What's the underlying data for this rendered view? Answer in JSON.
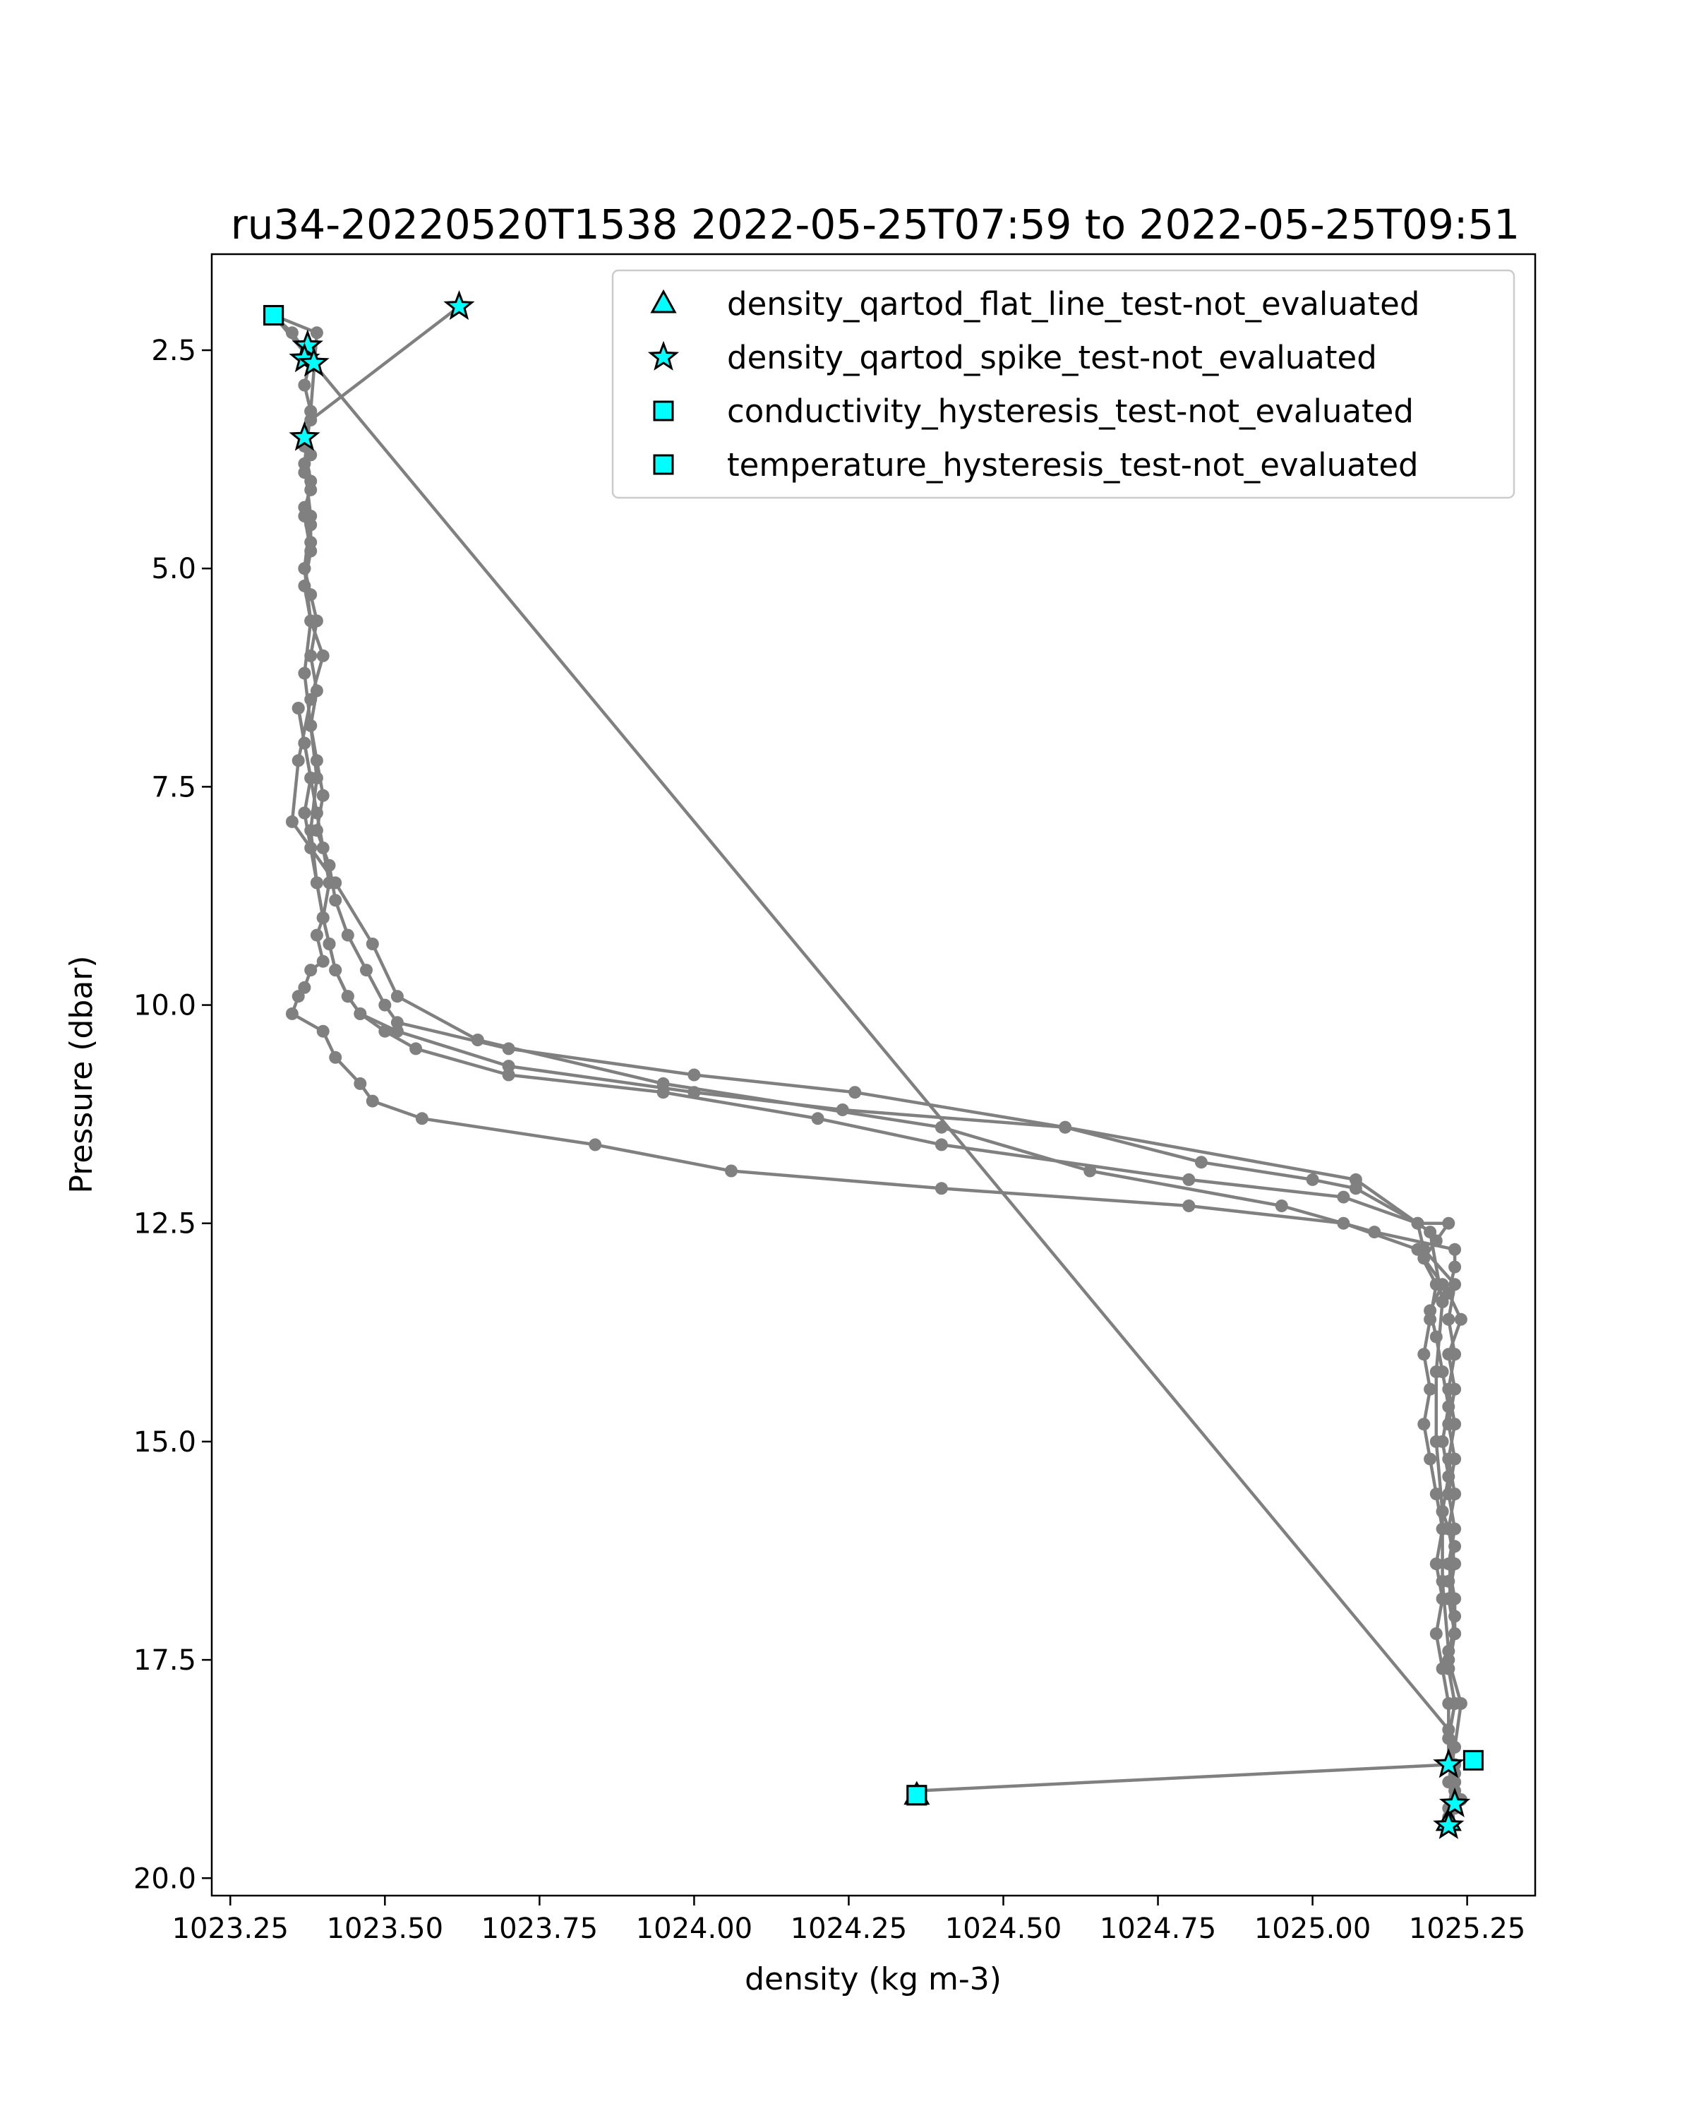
{
  "chart_data": {
    "type": "line",
    "title": "ru34-20220520T1538 2022-05-25T07:59 to 2022-05-25T09:51",
    "xlabel": "density (kg m-3)",
    "ylabel": "Pressure (dbar)",
    "xlim": [
      1023.22,
      1025.36
    ],
    "ylim": [
      20.2,
      1.4
    ],
    "y_inverted": true,
    "xticks": [
      1023.25,
      1023.5,
      1023.75,
      1024.0,
      1024.25,
      1024.5,
      1024.75,
      1025.0,
      1025.25
    ],
    "xtick_labels": [
      "1023.25",
      "1023.50",
      "1023.75",
      "1024.00",
      "1024.25",
      "1024.50",
      "1024.75",
      "1025.00",
      "1025.25"
    ],
    "yticks": [
      2.5,
      5.0,
      7.5,
      10.0,
      12.5,
      15.0,
      17.5,
      20.0
    ],
    "ytick_labels": [
      "2.5",
      "5.0",
      "7.5",
      "10.0",
      "12.5",
      "15.0",
      "17.5",
      "20.0"
    ],
    "grid": false,
    "legend_placement": "top-right",
    "line_color": "#808080",
    "marker_color": "#00ffff",
    "series": [
      {
        "x": [
          1023.62,
          1023.38,
          1023.37,
          1023.38,
          1023.37,
          1023.38,
          1023.37,
          1023.38,
          1023.38,
          1023.37,
          1023.38,
          1023.39,
          1023.38,
          1023.39,
          1023.38,
          1023.39,
          1023.4,
          1023.39,
          1023.41,
          1023.42,
          1023.44,
          1023.47,
          1023.5,
          1023.52,
          1023.7,
          1024.0,
          1024.26,
          1024.6,
          1024.82,
          1025.0,
          1025.07,
          1025.17,
          1025.18,
          1025.23,
          1025.22,
          1025.23,
          1025.22,
          1025.23,
          1025.22,
          1025.23,
          1025.22,
          1025.23,
          1025.22,
          1025.23,
          1025.22,
          1025.23,
          1025.22,
          1025.23,
          1025.23
        ],
        "y": [
          2.0,
          3.3,
          3.5,
          3.7,
          3.9,
          4.1,
          4.3,
          4.5,
          4.7,
          5.0,
          5.3,
          5.6,
          6.0,
          6.4,
          6.8,
          7.2,
          7.6,
          8.0,
          8.4,
          8.8,
          9.2,
          9.6,
          10.0,
          10.2,
          10.5,
          10.8,
          11.0,
          11.4,
          11.8,
          12.0,
          12.1,
          12.5,
          12.8,
          13.2,
          13.6,
          14.0,
          14.4,
          14.8,
          15.2,
          15.6,
          16.0,
          16.4,
          16.8,
          17.2,
          17.6,
          18.0,
          18.4,
          18.7,
          18.9
        ]
      },
      {
        "x": [
          1025.22,
          1025.23,
          1025.24,
          1025.22,
          1025.23,
          1025.22,
          1025.23,
          1025.21,
          1025.22,
          1025.21,
          1025.22,
          1025.21,
          1025.2,
          1025.19,
          1025.21,
          1025.18,
          1025.2,
          1025.22,
          1025.17,
          1025.05,
          1024.8,
          1024.4,
          1024.2,
          1023.95,
          1023.7,
          1023.55,
          1023.5,
          1023.46,
          1023.44,
          1023.42,
          1023.41,
          1023.4,
          1023.39,
          1023.38,
          1023.37,
          1023.38,
          1023.37,
          1023.36
        ],
        "y": [
          18.9,
          18.5,
          18.0,
          17.5,
          17.0,
          16.6,
          16.2,
          15.8,
          15.4,
          15.0,
          14.6,
          14.2,
          13.8,
          13.5,
          13.2,
          12.9,
          12.7,
          12.5,
          12.5,
          12.2,
          12.0,
          11.6,
          11.3,
          11.0,
          10.8,
          10.5,
          10.3,
          10.1,
          9.9,
          9.6,
          9.3,
          9.0,
          8.6,
          8.2,
          7.8,
          7.4,
          7.0,
          6.6
        ]
      },
      {
        "x": [
          1023.36,
          1023.37,
          1023.38,
          1023.39,
          1023.4,
          1023.41,
          1023.4,
          1023.39,
          1023.4,
          1023.38,
          1023.37,
          1023.36,
          1023.35,
          1023.4,
          1023.42,
          1023.46,
          1023.48,
          1023.56,
          1023.84,
          1024.06,
          1024.4,
          1024.8,
          1025.05,
          1025.17,
          1025.2,
          1025.19,
          1025.18,
          1025.19,
          1025.18,
          1025.19,
          1025.2,
          1025.21,
          1025.2,
          1025.21,
          1025.2,
          1025.21,
          1025.22,
          1025.22,
          1025.23,
          1025.22,
          1025.22
        ],
        "y": [
          6.6,
          7.0,
          7.4,
          7.8,
          8.2,
          8.6,
          9.0,
          9.2,
          9.5,
          9.6,
          9.8,
          9.9,
          10.1,
          10.3,
          10.6,
          10.9,
          11.1,
          11.3,
          11.6,
          11.9,
          12.1,
          12.3,
          12.5,
          12.8,
          13.2,
          13.6,
          14.0,
          14.4,
          14.8,
          15.2,
          15.6,
          16.0,
          16.4,
          16.8,
          17.2,
          17.6,
          18.0,
          18.4,
          18.8,
          19.2,
          19.4
        ]
      },
      {
        "x": [
          1025.22,
          1025.23,
          1025.22,
          1024.36,
          1024.36
        ],
        "y": [
          19.4,
          19.0,
          18.7,
          19.0,
          19.0
        ]
      },
      {
        "x": [
          1023.32,
          1023.35,
          1023.38,
          1023.37,
          1023.38,
          1023.37,
          1023.38,
          1023.37,
          1023.38,
          1023.37,
          1023.38,
          1023.4,
          1023.38,
          1023.36,
          1023.35,
          1023.42,
          1023.48,
          1023.52,
          1023.65,
          1023.95,
          1024.4,
          1024.64,
          1024.95,
          1025.1,
          1025.23,
          1025.23,
          1025.22,
          1025.24,
          1025.22,
          1025.23,
          1025.22,
          1025.23,
          1025.22,
          1025.23,
          1025.22,
          1025.23,
          1025.23,
          1025.22,
          1025.23,
          1025.22,
          1025.22,
          1025.23,
          1025.24,
          1025.22,
          1025.23
        ],
        "y": [
          2.1,
          2.3,
          2.6,
          2.9,
          3.2,
          3.6,
          4.0,
          4.4,
          4.8,
          5.2,
          5.6,
          6.0,
          6.5,
          7.2,
          7.9,
          8.6,
          9.3,
          9.9,
          10.4,
          10.9,
          11.4,
          11.9,
          12.3,
          12.6,
          12.8,
          13.0,
          13.3,
          13.6,
          14.0,
          14.4,
          14.8,
          15.2,
          15.6,
          16.0,
          16.4,
          16.8,
          17.2,
          17.6,
          18.0,
          18.4,
          18.7,
          18.9,
          19.1,
          19.3,
          19.2
        ]
      },
      {
        "x": [
          1023.32,
          1023.39,
          1023.38,
          1023.37,
          1023.38,
          1023.37,
          1023.38,
          1023.37,
          1023.38,
          1023.39,
          1023.38,
          1023.39,
          1023.4,
          1023.41,
          1023.42,
          1023.44,
          1023.46,
          1023.52,
          1023.7,
          1024.0,
          1024.24,
          1024.6,
          1025.07,
          1025.19,
          1025.21,
          1025.2,
          1025.2,
          1025.21,
          1025.21,
          1025.22
        ],
        "y": [
          2.1,
          2.3,
          3.2,
          3.8,
          4.4,
          5.0,
          5.6,
          6.2,
          6.8,
          7.4,
          8.0,
          8.6,
          9.0,
          9.3,
          9.6,
          9.9,
          10.1,
          10.3,
          10.7,
          11.0,
          11.2,
          11.4,
          12.0,
          12.6,
          13.4,
          14.2,
          15.0,
          15.8,
          16.6,
          17.4
        ]
      },
      {
        "x": [
          1023.32,
          1025.22
        ],
        "y": [
          2.1,
          18.3
        ]
      }
    ],
    "markers": {
      "density_qartod_flat_line_test-not_evaluated": {
        "marker": "triangle",
        "points": [
          [
            1024.36,
            19.05
          ],
          [
            1025.22,
            19.35
          ]
        ]
      },
      "density_qartod_spike_test-not_evaluated": {
        "marker": "star",
        "points": [
          [
            1023.62,
            2.0
          ],
          [
            1023.375,
            2.45
          ],
          [
            1023.37,
            2.6
          ],
          [
            1023.385,
            2.65
          ],
          [
            1023.37,
            3.5
          ],
          [
            1025.22,
            18.7
          ],
          [
            1025.23,
            19.15
          ],
          [
            1025.22,
            19.4
          ]
        ]
      },
      "conductivity_hysteresis_test-not_evaluated": {
        "marker": "square",
        "points": [
          [
            1023.32,
            2.1
          ],
          [
            1024.36,
            19.05
          ],
          [
            1025.26,
            18.65
          ]
        ]
      },
      "temperature_hysteresis_test-not_evaluated": {
        "marker": "square",
        "points": [
          [
            1023.32,
            2.1
          ],
          [
            1024.36,
            19.05
          ]
        ]
      }
    },
    "legend": [
      {
        "label": "density_qartod_flat_line_test-not_evaluated",
        "marker": "triangle"
      },
      {
        "label": "density_qartod_spike_test-not_evaluated",
        "marker": "star"
      },
      {
        "label": "conductivity_hysteresis_test-not_evaluated",
        "marker": "square"
      },
      {
        "label": "temperature_hysteresis_test-not_evaluated",
        "marker": "square"
      }
    ]
  }
}
